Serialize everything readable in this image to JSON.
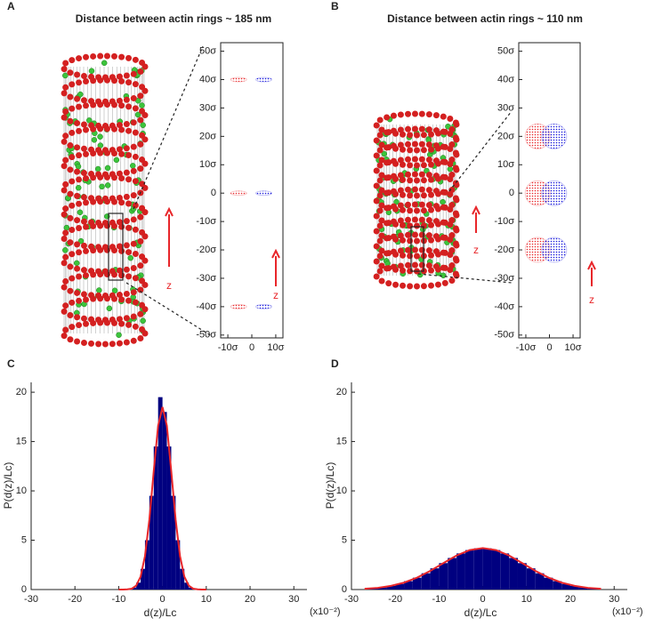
{
  "chart_data": [
    {
      "type": "scatter",
      "panel": "A",
      "title": "Distance between actin rings ~ 185 nm",
      "xlim": [
        -13,
        13
      ],
      "ylim": [
        -51,
        53
      ],
      "xticks": [
        {
          "value": -10,
          "label": "-10σ"
        },
        0,
        {
          "value": 10,
          "label": "10σ"
        }
      ],
      "yticks": [
        {
          "value": 50,
          "label": "50σ"
        },
        {
          "value": 40,
          "label": "40σ"
        },
        {
          "value": 30,
          "label": "30σ"
        },
        {
          "value": 20,
          "label": "20σ"
        },
        {
          "value": 10,
          "label": "10σ"
        },
        0,
        {
          "value": -10,
          "label": "-10σ"
        },
        {
          "value": -20,
          "label": "-20σ"
        },
        {
          "value": -30,
          "label": "-30σ"
        },
        {
          "value": -40,
          "label": "-40σ"
        },
        {
          "value": -50,
          "label": "-50σ"
        }
      ],
      "series": [
        {
          "color": "#e8262a",
          "x": [
            -5.5,
            -5.5,
            -5.5
          ],
          "values": [
            40,
            0,
            -40
          ]
        },
        {
          "color": "#1a1adb",
          "x": [
            5,
            5,
            5
          ],
          "values": [
            40,
            0,
            -40
          ]
        }
      ],
      "annotations": [
        "z",
        "z"
      ]
    },
    {
      "type": "scatter",
      "panel": "B",
      "title": "Distance between actin rings ~ 110 nm",
      "xlim": [
        -13,
        13
      ],
      "ylim": [
        -51,
        53
      ],
      "xticks": [
        {
          "value": -10,
          "label": "-10σ"
        },
        0,
        {
          "value": 10,
          "label": "10σ"
        }
      ],
      "yticks": [
        {
          "value": 50,
          "label": "50σ"
        },
        {
          "value": 40,
          "label": "40σ"
        },
        {
          "value": 30,
          "label": "30σ"
        },
        {
          "value": 20,
          "label": "20σ"
        },
        {
          "value": 10,
          "label": "10σ"
        },
        0,
        {
          "value": -10,
          "label": "-10σ"
        },
        {
          "value": -20,
          "label": "-20σ"
        },
        {
          "value": -30,
          "label": "-30σ"
        },
        {
          "value": -40,
          "label": "-40σ"
        },
        {
          "value": -50,
          "label": "-50σ"
        }
      ],
      "series": [
        {
          "color": "#e8262a",
          "x": [
            -5,
            -5,
            -5
          ],
          "values": [
            20,
            0,
            -20
          ]
        },
        {
          "color": "#1a1adb",
          "x": [
            2,
            2,
            2
          ],
          "values": [
            20,
            0,
            -20
          ]
        }
      ],
      "annotations": [
        "z",
        "z"
      ]
    },
    {
      "type": "histogram",
      "panel": "C",
      "xlabel": "d(z)/Lc",
      "ylabel": "P(d(z)/Lc)",
      "xunit": "(x10⁻²)",
      "xlim": [
        -30,
        33
      ],
      "ylim": [
        0,
        21
      ],
      "xticks": [
        -30,
        -20,
        -10,
        0,
        10,
        20,
        30
      ],
      "yticks": [
        0,
        5,
        10,
        15,
        20
      ],
      "color": "#000080",
      "bins": [
        -8,
        -7,
        -6,
        -5,
        -4,
        -3,
        -2,
        -1,
        0,
        1,
        2,
        3,
        4,
        5,
        6,
        7,
        8
      ],
      "values": [
        0.1,
        0.2,
        0.7,
        2.1,
        5,
        9.5,
        14.5,
        19.5,
        18,
        14.5,
        9.5,
        5,
        2.1,
        0.7,
        0.2,
        0.1
      ],
      "fit": {
        "color": "#e8262a",
        "x": [
          -10,
          -9,
          -8,
          -7,
          -6,
          -5,
          -4,
          -3,
          -2,
          -1,
          0,
          1,
          2,
          3,
          4,
          5,
          6,
          7,
          8,
          9,
          10
        ],
        "values": [
          0,
          0,
          0.02,
          0.09,
          0.4,
          1.3,
          3.4,
          7.1,
          12,
          16.6,
          18.5,
          16.6,
          12,
          7.1,
          3.4,
          1.3,
          0.4,
          0.09,
          0.02,
          0,
          0
        ]
      }
    },
    {
      "type": "histogram",
      "panel": "D",
      "xlabel": "d(z)/Lc",
      "ylabel": "P(d(z)/Lc)",
      "xunit": "(x10⁻²)",
      "xlim": [
        -30,
        33
      ],
      "ylim": [
        0,
        21
      ],
      "xticks": [
        -30,
        -20,
        -10,
        0,
        10,
        20,
        30
      ],
      "yticks": [
        0,
        5,
        10,
        15,
        20
      ],
      "color": "#000080",
      "bins": [
        -26,
        -24,
        -22,
        -20,
        -18,
        -16,
        -14,
        -12,
        -10,
        -8,
        -6,
        -4,
        -2,
        0,
        2,
        4,
        6,
        8,
        10,
        12,
        14,
        16,
        18,
        20,
        22,
        24,
        26
      ],
      "values": [
        0.13,
        0.22,
        0.37,
        0.57,
        0.85,
        1.2,
        1.65,
        2.15,
        2.68,
        3.2,
        3.66,
        4.0,
        4.18,
        4.18,
        4.0,
        3.66,
        3.2,
        2.68,
        2.15,
        1.65,
        1.2,
        0.85,
        0.57,
        0.37,
        0.22,
        0.13
      ],
      "fit": {
        "color": "#e8262a",
        "x": [
          -27,
          -24,
          -21,
          -18,
          -15,
          -12,
          -9,
          -6,
          -3,
          0,
          3,
          6,
          9,
          12,
          15,
          18,
          21,
          24,
          27
        ],
        "values": [
          0.075,
          0.17,
          0.37,
          0.7,
          1.21,
          1.89,
          2.68,
          3.45,
          4.0,
          4.2,
          4.0,
          3.45,
          2.68,
          1.89,
          1.21,
          0.7,
          0.37,
          0.17,
          0.075
        ]
      }
    }
  ]
}
